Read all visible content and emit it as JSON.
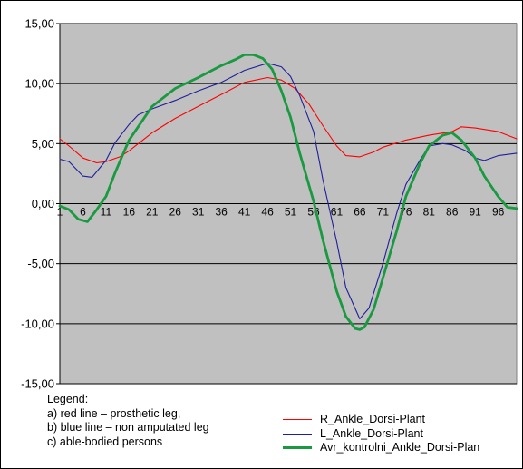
{
  "chart_data": {
    "type": "line",
    "title": "",
    "xlabel": "",
    "ylabel": "",
    "ylim": [
      -15,
      15
    ],
    "y_ticks": [
      "15,00",
      "10,00",
      "5,00",
      "0,00",
      "-5,00",
      "-10,00",
      "-15,00"
    ],
    "x_ticks": [
      "1",
      "6",
      "11",
      "16",
      "21",
      "26",
      "31",
      "36",
      "41",
      "46",
      "51",
      "56",
      "61",
      "66",
      "71",
      "76",
      "81",
      "86",
      "91",
      "96"
    ],
    "xlim": [
      1,
      100
    ],
    "grid": "horizontal major gridlines",
    "plot_background": "#C0C0C0",
    "legend_position": "bottom",
    "series": [
      {
        "name": "R_Ankle_Dorsi-Plant",
        "color": "#FF0000",
        "x": [
          1,
          3,
          6,
          9,
          11,
          14,
          16,
          21,
          26,
          31,
          36,
          41,
          46,
          49,
          52,
          55,
          58,
          61,
          63,
          66,
          69,
          71,
          76,
          81,
          86,
          88,
          91,
          96,
          100
        ],
        "y": [
          5.4,
          4.8,
          3.8,
          3.4,
          3.5,
          3.9,
          4.4,
          5.9,
          7.1,
          8.1,
          9.1,
          10.1,
          10.5,
          10.3,
          9.6,
          8.3,
          6.5,
          4.8,
          4.0,
          3.9,
          4.3,
          4.7,
          5.3,
          5.7,
          6.0,
          6.4,
          6.3,
          6.0,
          5.4
        ]
      },
      {
        "name": "L_Ankle_Dorsi-Plant",
        "color": "#1F1F9E",
        "x": [
          1,
          3,
          6,
          8,
          11,
          13,
          16,
          18,
          21,
          26,
          31,
          36,
          41,
          46,
          49,
          51,
          53,
          56,
          58,
          61,
          63,
          66,
          68,
          71,
          74,
          76,
          79,
          81,
          84,
          86,
          89,
          91,
          93,
          96,
          100
        ],
        "y": [
          3.7,
          3.5,
          2.3,
          2.2,
          3.6,
          5.1,
          6.6,
          7.4,
          7.9,
          8.6,
          9.4,
          10.1,
          11.1,
          11.7,
          11.4,
          10.6,
          9.0,
          6.0,
          2.0,
          -3.2,
          -7.0,
          -9.6,
          -8.7,
          -5.0,
          -0.8,
          1.6,
          3.6,
          4.8,
          5.0,
          4.9,
          4.4,
          3.8,
          3.6,
          4.0,
          4.2
        ]
      },
      {
        "name": "Avr_kontrolni_Ankle_Dorsi-Plan",
        "color": "#1A9A40",
        "x": [
          1,
          3,
          5,
          7,
          9,
          11,
          13,
          16,
          21,
          26,
          31,
          36,
          39,
          41,
          43,
          45,
          47,
          49,
          51,
          53,
          56,
          58,
          61,
          63,
          65,
          66,
          67,
          69,
          71,
          74,
          76,
          79,
          81,
          84,
          86,
          88,
          91,
          93,
          96,
          98,
          100
        ],
        "y": [
          -0.2,
          -0.5,
          -1.3,
          -1.5,
          -0.5,
          0.6,
          2.6,
          5.3,
          8.1,
          9.6,
          10.5,
          11.5,
          12.0,
          12.4,
          12.4,
          12.1,
          11.2,
          9.4,
          7.2,
          4.2,
          0.2,
          -3.0,
          -7.3,
          -9.4,
          -10.4,
          -10.5,
          -10.3,
          -8.8,
          -6.2,
          -2.3,
          0.6,
          3.3,
          4.8,
          5.7,
          5.9,
          5.3,
          3.8,
          2.3,
          0.6,
          -0.3,
          -0.4
        ]
      }
    ]
  },
  "legend": {
    "heading": "Legend:",
    "notes": [
      "a) red line – prosthetic leg,",
      "b) blue line – non amputated leg",
      "c) able-bodied persons"
    ]
  }
}
